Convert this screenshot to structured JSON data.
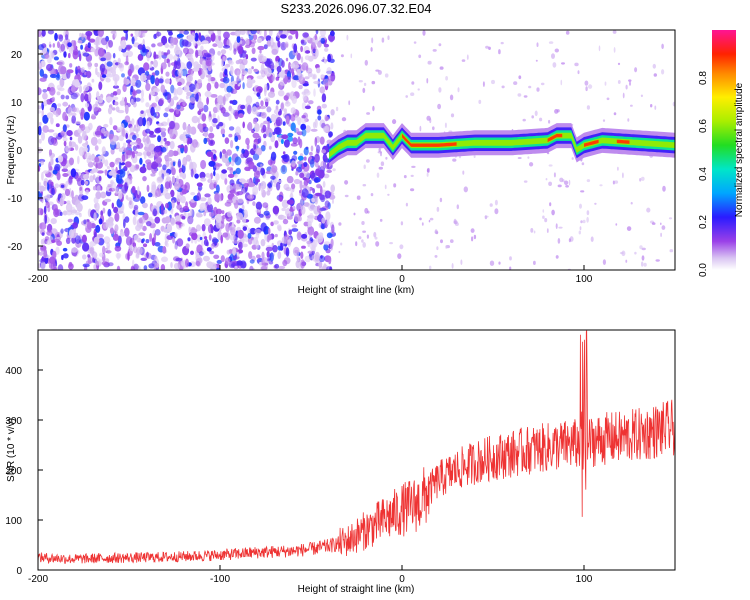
{
  "title": "S233.2026.096.07.32.E04",
  "chart_data": [
    {
      "type": "heatmap",
      "xlabel": "Height of straight line (km)",
      "ylabel": "Frequency (Hz)",
      "xlim": [
        -200,
        150
      ],
      "ylim": [
        -25,
        25
      ],
      "x_ticks": [
        "-200",
        "-100",
        "0",
        "100"
      ],
      "y_ticks": [
        "20",
        "10",
        "0",
        "-10",
        "-20"
      ],
      "colorbar": {
        "label": "Normalized spectral amplitude",
        "range": [
          0,
          1
        ],
        "ticks": [
          "0.0",
          "0.2",
          "0.4",
          "0.6",
          "0.8"
        ],
        "colormap": "rainbow (white-violet-blue-cyan-green-yellow-red-magenta)"
      },
      "noise_region_x": [
        -200,
        -38
      ],
      "signal_trace": {
        "x": [
          -40,
          -35,
          -30,
          -25,
          -20,
          -15,
          -10,
          -5,
          0,
          5,
          10,
          20,
          40,
          60,
          80,
          85,
          90,
          93,
          96,
          100,
          110,
          130,
          150
        ],
        "freq": [
          -1,
          0.5,
          1.5,
          1.5,
          3,
          3,
          3,
          0.5,
          3,
          1,
          1,
          1,
          1.5,
          1.5,
          2,
          3,
          3,
          3,
          0,
          1,
          2,
          1.5,
          1
        ]
      }
    },
    {
      "type": "line",
      "xlabel": "Height of straight line (km)",
      "ylabel": "SNR (10 * v/v)",
      "xlim": [
        -200,
        150
      ],
      "ylim": [
        0,
        480
      ],
      "x_ticks": [
        "-200",
        "-100",
        "0",
        "100"
      ],
      "y_ticks": [
        "0",
        "100",
        "200",
        "300",
        "400"
      ],
      "series": [
        {
          "color": "#ee3333",
          "x": [
            -200,
            -180,
            -160,
            -140,
            -120,
            -100,
            -80,
            -60,
            -50,
            -40,
            -30,
            -20,
            -10,
            0,
            10,
            15,
            20,
            30,
            40,
            50,
            60,
            70,
            80,
            90,
            95,
            98,
            100,
            102,
            105,
            110,
            120,
            130,
            140,
            150
          ],
          "values": [
            25,
            22,
            24,
            25,
            27,
            30,
            35,
            38,
            42,
            48,
            58,
            80,
            100,
            120,
            135,
            160,
            180,
            200,
            215,
            225,
            232,
            240,
            245,
            250,
            252,
            250,
            260,
            255,
            258,
            262,
            265,
            270,
            278,
            285
          ]
        }
      ]
    }
  ]
}
